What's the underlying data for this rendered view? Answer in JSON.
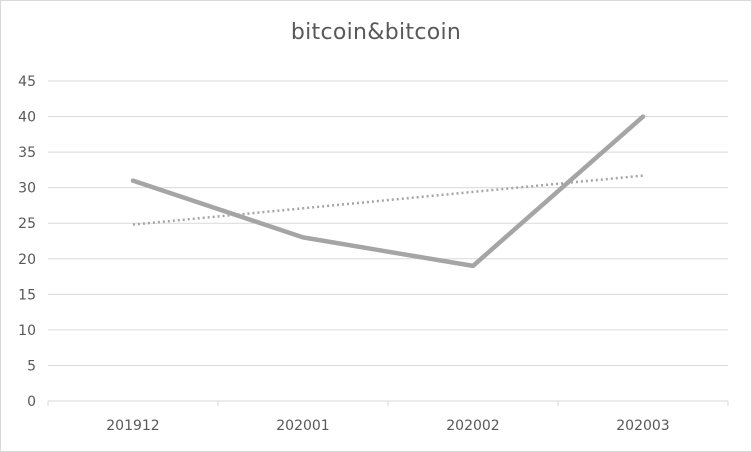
{
  "chart_data": {
    "type": "line",
    "title": "bitcoin&bitcoin",
    "xlabel": "",
    "ylabel": "",
    "categories": [
      "201912",
      "202001",
      "202002",
      "202003"
    ],
    "series": [
      {
        "values": [
          31,
          23,
          19,
          40
        ],
        "color": "#a5a5a5",
        "style": "solid"
      },
      {
        "values": [
          24.8,
          27.1,
          29.4,
          31.7
        ],
        "color": "#a5a5a5",
        "style": "dotted",
        "trendline": true
      }
    ],
    "ylim": [
      0,
      45
    ],
    "yticks": [
      0,
      5,
      10,
      15,
      20,
      25,
      30,
      35,
      40,
      45
    ],
    "grid": true,
    "legend": "none",
    "colors": {
      "grid": "#d9d9d9",
      "text": "#595959",
      "border": "#d9d9d9"
    }
  }
}
